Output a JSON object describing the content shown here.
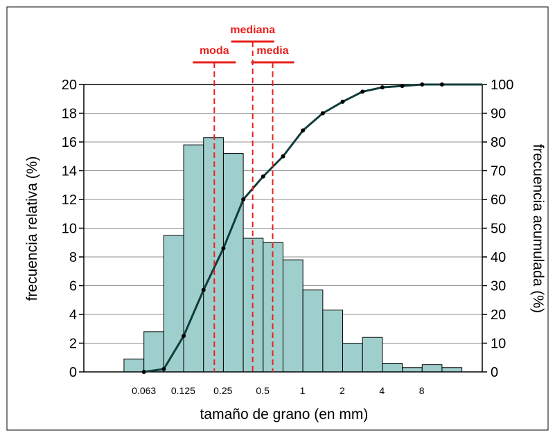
{
  "chart_data": {
    "type": "bar",
    "xlabel": "tamaño de grano (en mm)",
    "ylabel": "frecuencia relativa (%)",
    "y2label": "frecuencia acumulada (%)",
    "ylim": [
      0,
      20
    ],
    "y2lim": [
      0,
      100
    ],
    "yticks": [
      "0",
      "2",
      "4",
      "6",
      "8",
      "10",
      "12",
      "14",
      "16",
      "18",
      "20"
    ],
    "y2ticks": [
      "0",
      "10",
      "20",
      "30",
      "40",
      "50",
      "60",
      "70",
      "80",
      "90",
      "100"
    ],
    "x_scale": "log2",
    "xlim": [
      0.0221,
      23.0
    ],
    "xticks": [
      {
        "value": 0.063,
        "label": "0.063"
      },
      {
        "value": 0.125,
        "label": "0.125"
      },
      {
        "value": 0.25,
        "label": "0.25"
      },
      {
        "value": 0.5,
        "label": "0.5"
      },
      {
        "value": 1,
        "label": "1"
      },
      {
        "value": 2,
        "label": "2"
      },
      {
        "value": 4,
        "label": "4"
      },
      {
        "value": 8,
        "label": "8"
      }
    ],
    "grid": "horizontal",
    "histogram": {
      "name": "frecuencia relativa",
      "color": "#9fcfcd",
      "bin_edges": [
        0.0445,
        0.063,
        0.0891,
        0.126,
        0.1782,
        0.252,
        0.3564,
        0.504,
        0.7127,
        1.008,
        1.426,
        2.016,
        2.851,
        4.032,
        5.702,
        8.064,
        11.4,
        16.13
      ],
      "values": [
        0.9,
        2.8,
        9.5,
        15.8,
        16.3,
        15.2,
        9.3,
        9.0,
        7.8,
        5.7,
        4.3,
        2.0,
        2.4,
        0.6,
        0.3,
        0.5,
        0.3
      ]
    },
    "cumulative": {
      "name": "frecuencia acumulada",
      "color": "#123c3c",
      "x": [
        0.063,
        0.0891,
        0.126,
        0.1782,
        0.252,
        0.3564,
        0.504,
        0.7127,
        1.008,
        1.426,
        2.016,
        2.851,
        4.032,
        5.702,
        8.064,
        11.4
      ],
      "y": [
        0.0,
        1.0,
        12.5,
        28.5,
        43.0,
        60.0,
        68.0,
        75.0,
        84.0,
        90.0,
        94.0,
        97.5,
        99.0,
        99.5,
        100.0,
        100.0
      ]
    },
    "statistics": [
      {
        "label": "moda",
        "value": 0.215
      },
      {
        "label": "mediana",
        "value": 0.42
      },
      {
        "label": "media",
        "value": 0.595
      }
    ],
    "stat_color": "#e8201c"
  }
}
